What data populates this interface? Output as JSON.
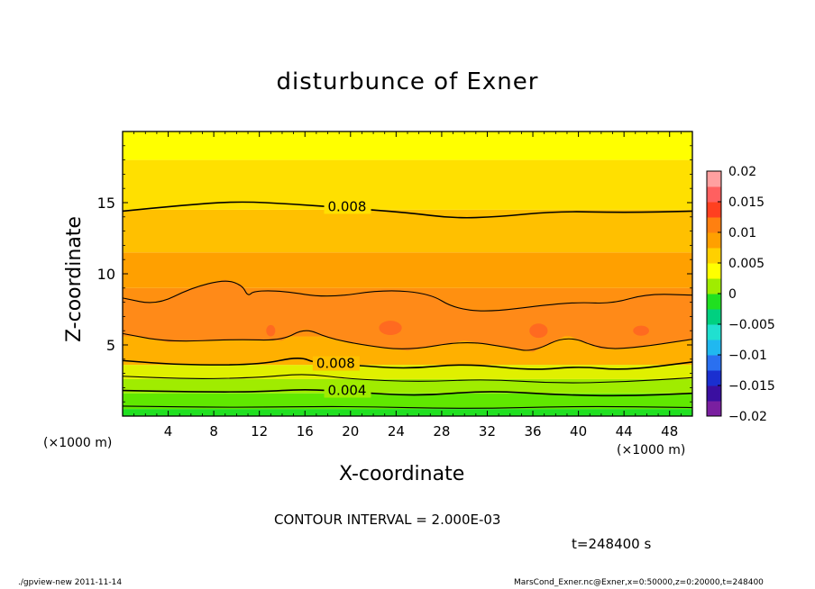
{
  "chart_data": {
    "type": "heatmap",
    "title": "disturbunce of Exner",
    "xlabel": "X-coordinate",
    "ylabel": "Z-coordinate",
    "x_unit_label": "(×1000 m)",
    "y_unit_label": "(×1000 m)",
    "xlim": [
      0,
      50
    ],
    "ylim": [
      0,
      20
    ],
    "x_ticks": [
      4,
      8,
      12,
      16,
      20,
      24,
      28,
      32,
      36,
      40,
      44,
      48
    ],
    "y_ticks": [
      5,
      10,
      15
    ],
    "colorbar": {
      "min": -0.02,
      "max": 0.02,
      "tick_values": [
        0.02,
        0.015,
        0.01,
        0.005,
        0,
        -0.005,
        -0.01,
        -0.015,
        -0.02
      ],
      "tick_labels": [
        "0.02",
        "0.015",
        "0.01",
        "0.005",
        "0",
        "−0.005",
        "−0.01",
        "−0.015",
        "−0.02"
      ],
      "colors": [
        "#7a1fa0",
        "#3a0fa0",
        "#1a2fd0",
        "#2a70f0",
        "#20b8f0",
        "#20e0d0",
        "#00d080",
        "#20e020",
        "#a0ec00",
        "#ffff00",
        "#ffd000",
        "#ffa000",
        "#ff8010",
        "#ff4020",
        "#ff6060",
        "#ffa0a0"
      ]
    },
    "bands": [
      {
        "z0": 0,
        "z1": 0.5,
        "value": 0.001,
        "color": "#20e020"
      },
      {
        "z0": 0.5,
        "z1": 1.6,
        "value": 0.002,
        "color": "#60e800"
      },
      {
        "z0": 1.6,
        "z1": 2.6,
        "value": 0.004,
        "color": "#a0ec00"
      },
      {
        "z0": 2.6,
        "z1": 3.6,
        "value": 0.006,
        "color": "#e0f000"
      },
      {
        "z0": 3.6,
        "z1": 5.6,
        "value": 0.009,
        "color": "#ffb000"
      },
      {
        "z0": 5.6,
        "z1": 9.0,
        "value": 0.011,
        "color": "#ff9010"
      },
      {
        "z0": 9.0,
        "z1": 11.5,
        "value": 0.01,
        "color": "#ffa000"
      },
      {
        "z0": 11.5,
        "z1": 14.5,
        "value": 0.009,
        "color": "#ffc000"
      },
      {
        "z0": 14.5,
        "z1": 18.0,
        "value": 0.007,
        "color": "#ffe000"
      },
      {
        "z0": 18.0,
        "z1": 20.0,
        "value": 0.006,
        "color": "#ffff00"
      }
    ],
    "contour_interval": 0.002,
    "contours": [
      {
        "level": 0.008,
        "label": "0.008",
        "label_x": 18,
        "points": [
          [
            0,
            14.4
          ],
          [
            5,
            14.8
          ],
          [
            10,
            15.1
          ],
          [
            15,
            14.9
          ],
          [
            20,
            14.6
          ],
          [
            25,
            14.3
          ],
          [
            29,
            13.9
          ],
          [
            33,
            14.0
          ],
          [
            38,
            14.4
          ],
          [
            44,
            14.3
          ],
          [
            50,
            14.4
          ]
        ]
      },
      {
        "level": 0.01,
        "label": "",
        "label_x": null,
        "points": [
          [
            0,
            8.3
          ],
          [
            3,
            7.8
          ],
          [
            6,
            9.0
          ],
          [
            9,
            9.6
          ],
          [
            10.5,
            9.2
          ],
          [
            11,
            8.4
          ],
          [
            11.5,
            8.8
          ],
          [
            14,
            8.8
          ],
          [
            18,
            8.3
          ],
          [
            23,
            8.9
          ],
          [
            27,
            8.6
          ],
          [
            29,
            7.6
          ],
          [
            32,
            7.3
          ],
          [
            37,
            7.8
          ],
          [
            40,
            8.0
          ],
          [
            43,
            7.9
          ],
          [
            46,
            8.6
          ],
          [
            50,
            8.5
          ]
        ]
      },
      {
        "level": 0.01,
        "label": "",
        "label_x": null,
        "points": [
          [
            0,
            5.8
          ],
          [
            4,
            5.2
          ],
          [
            10,
            5.4
          ],
          [
            14,
            5.3
          ],
          [
            16,
            6.2
          ],
          [
            18,
            5.5
          ],
          [
            21,
            5.0
          ],
          [
            25,
            4.6
          ],
          [
            30,
            5.3
          ],
          [
            34,
            4.8
          ],
          [
            36,
            4.5
          ],
          [
            39,
            5.7
          ],
          [
            42,
            4.7
          ],
          [
            45,
            4.8
          ],
          [
            50,
            5.4
          ]
        ]
      },
      {
        "level": 0.008,
        "label": "0.008",
        "label_x": 17,
        "points": [
          [
            0,
            3.9
          ],
          [
            5,
            3.6
          ],
          [
            12,
            3.6
          ],
          [
            15.5,
            4.2
          ],
          [
            17,
            3.7
          ],
          [
            20,
            3.6
          ],
          [
            25,
            3.3
          ],
          [
            30,
            3.7
          ],
          [
            36,
            3.2
          ],
          [
            40,
            3.5
          ],
          [
            44,
            3.2
          ],
          [
            50,
            3.8
          ]
        ]
      },
      {
        "level": 0.006,
        "label": "",
        "label_x": null,
        "points": [
          [
            0,
            2.8
          ],
          [
            6,
            2.6
          ],
          [
            12,
            2.7
          ],
          [
            16,
            3.0
          ],
          [
            20,
            2.6
          ],
          [
            26,
            2.4
          ],
          [
            32,
            2.6
          ],
          [
            38,
            2.3
          ],
          [
            44,
            2.4
          ],
          [
            50,
            2.7
          ]
        ]
      },
      {
        "level": 0.004,
        "label": "0.004",
        "label_x": 18,
        "points": [
          [
            0,
            1.8
          ],
          [
            6,
            1.7
          ],
          [
            12,
            1.7
          ],
          [
            16,
            1.9
          ],
          [
            20,
            1.7
          ],
          [
            26,
            1.4
          ],
          [
            32,
            1.8
          ],
          [
            38,
            1.5
          ],
          [
            44,
            1.4
          ],
          [
            50,
            1.6
          ]
        ]
      },
      {
        "level": 0.002,
        "label": "",
        "label_x": null,
        "points": [
          [
            0,
            0.7
          ],
          [
            10,
            0.6
          ],
          [
            20,
            0.7
          ],
          [
            30,
            0.5
          ],
          [
            40,
            0.7
          ],
          [
            50,
            0.6
          ]
        ]
      }
    ],
    "blobs": [
      {
        "x": 23.5,
        "z": 6.2,
        "rx": 1.0,
        "rz": 0.5
      },
      {
        "x": 36.5,
        "z": 6.0,
        "rx": 0.8,
        "rz": 0.5
      },
      {
        "x": 45.5,
        "z": 6.0,
        "rx": 0.7,
        "rz": 0.35
      },
      {
        "x": 13,
        "z": 6.0,
        "rx": 0.4,
        "rz": 0.4
      }
    ]
  },
  "annotations": {
    "contour_interval_text": "CONTOUR INTERVAL = 2.000E-03",
    "time_text": "t=248400 s",
    "footer_left": "./gpview-new   2011-11-14",
    "footer_right": "MarsCond_Exner.nc@Exner,x=0:50000,z=0:20000,t=248400"
  }
}
